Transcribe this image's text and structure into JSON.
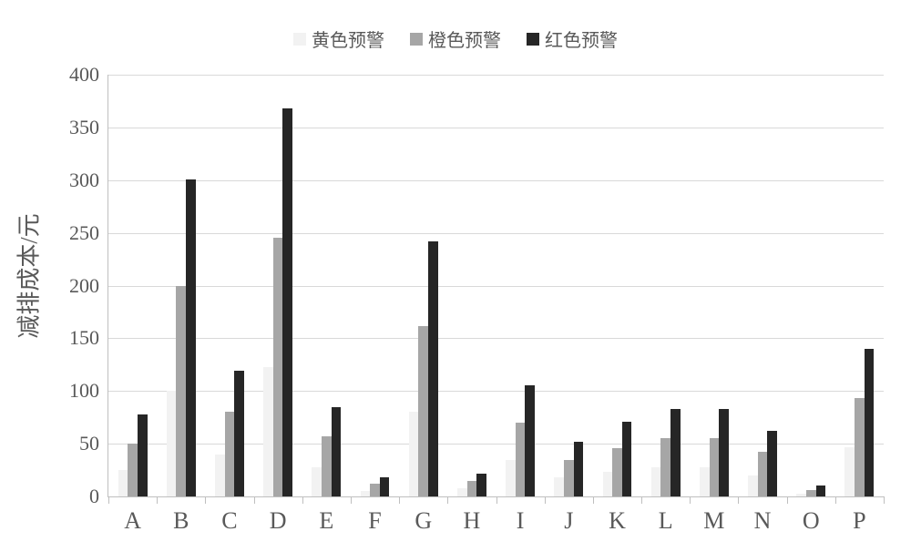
{
  "chart": {
    "type": "bar",
    "background_color": "#ffffff",
    "grid_color": "#d9d9d9",
    "axis_color": "#bfbfbf",
    "tick_fontsize": 22,
    "xtick_fontsize": 26,
    "text_color": "#595959",
    "ylabel": "减排成本/元",
    "ylabel_fontsize": 26,
    "ylim": [
      0,
      400
    ],
    "ytick_step": 50,
    "yticks": [
      0,
      50,
      100,
      150,
      200,
      250,
      300,
      350,
      400
    ],
    "categories": [
      "A",
      "B",
      "C",
      "D",
      "E",
      "F",
      "G",
      "H",
      "I",
      "J",
      "K",
      "L",
      "M",
      "N",
      "O",
      "P"
    ],
    "series": [
      {
        "label": "黄色预警",
        "color": "#f2f2f2",
        "values": [
          25,
          100,
          40,
          123,
          28,
          5,
          80,
          8,
          35,
          18,
          23,
          28,
          28,
          20,
          3,
          47
        ]
      },
      {
        "label": "橙色预警",
        "color": "#a6a6a6",
        "values": [
          50,
          200,
          80,
          245,
          57,
          12,
          162,
          15,
          70,
          35,
          46,
          55,
          55,
          42,
          6,
          93
        ]
      },
      {
        "label": "红色预警",
        "color": "#262626",
        "values": [
          78,
          301,
          119,
          368,
          85,
          18,
          242,
          22,
          105,
          52,
          71,
          83,
          83,
          62,
          10,
          140
        ]
      }
    ],
    "legend_fontsize": 20,
    "bar_width_ratio": 0.2,
    "group_gap_ratio": 0.4
  }
}
